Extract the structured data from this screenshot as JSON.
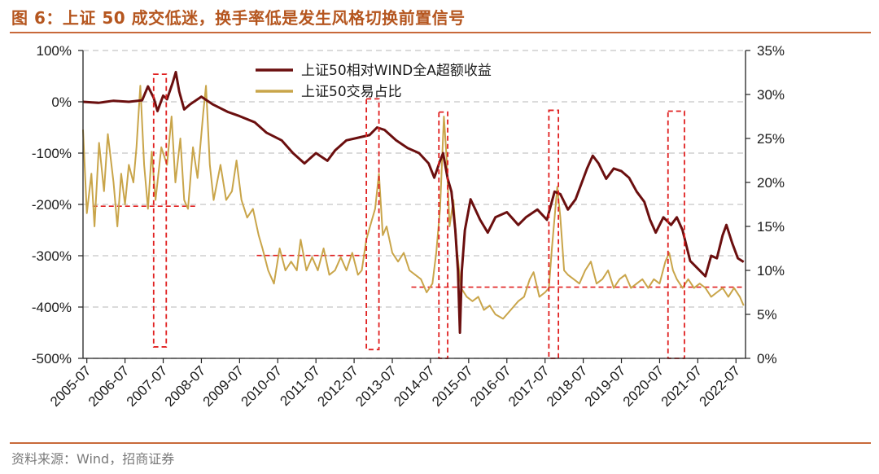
{
  "figure": {
    "title": "图 6：上证 50 成交低迷，换手率低是发生风格切换前置信号",
    "source": "资料来源：Wind，招商证券"
  },
  "colors": {
    "title": "#b5561f",
    "rule": "#c8693a",
    "relative_return": "#6b0f0f",
    "turnover_share": "#c9a54a",
    "highlight": "#e02020"
  },
  "chart_data": {
    "type": "line",
    "x_categories": [
      "2005-07",
      "2006-07",
      "2007-07",
      "2008-07",
      "2009-07",
      "2010-07",
      "2011-07",
      "2012-07",
      "2013-07",
      "2014-07",
      "2015-07",
      "2016-07",
      "2017-07",
      "2018-07",
      "2019-07",
      "2020-07",
      "2021-07",
      "2022-07"
    ],
    "x_range": [
      2005.4,
      2022.75
    ],
    "y_left": {
      "ticks": [
        "100%",
        "0%",
        "-100%",
        "-200%",
        "-300%",
        "-400%",
        "-500%"
      ],
      "range": [
        -500,
        100
      ]
    },
    "y_right": {
      "ticks": [
        "35%",
        "30%",
        "25%",
        "20%",
        "15%",
        "10%",
        "5%",
        "0%"
      ],
      "range": [
        0,
        35
      ]
    },
    "gridlines": "horizontal dashed",
    "legend_position": "top-center",
    "series": [
      {
        "name": "上证50相对WIND全A超额收益",
        "axis": "left",
        "color": "#6b0f0f",
        "points": [
          [
            2005.4,
            0
          ],
          [
            2005.8,
            -2
          ],
          [
            2006.2,
            2
          ],
          [
            2006.6,
            0
          ],
          [
            2006.95,
            3
          ],
          [
            2007.1,
            30
          ],
          [
            2007.25,
            8
          ],
          [
            2007.35,
            -18
          ],
          [
            2007.5,
            12
          ],
          [
            2007.6,
            5
          ],
          [
            2007.75,
            38
          ],
          [
            2007.83,
            58
          ],
          [
            2007.92,
            20
          ],
          [
            2008.05,
            -15
          ],
          [
            2008.2,
            -5
          ],
          [
            2008.5,
            10
          ],
          [
            2008.8,
            -5
          ],
          [
            2009.2,
            -20
          ],
          [
            2009.5,
            -28
          ],
          [
            2009.9,
            -40
          ],
          [
            2010.2,
            -60
          ],
          [
            2010.6,
            -75
          ],
          [
            2010.9,
            -100
          ],
          [
            2011.2,
            -120
          ],
          [
            2011.5,
            -100
          ],
          [
            2011.8,
            -115
          ],
          [
            2012.0,
            -95
          ],
          [
            2012.3,
            -75
          ],
          [
            2012.6,
            -70
          ],
          [
            2012.9,
            -65
          ],
          [
            2013.1,
            -50
          ],
          [
            2013.3,
            -55
          ],
          [
            2013.6,
            -75
          ],
          [
            2013.9,
            -90
          ],
          [
            2014.2,
            -100
          ],
          [
            2014.45,
            -120
          ],
          [
            2014.6,
            -148
          ],
          [
            2014.75,
            -115
          ],
          [
            2014.83,
            -100
          ],
          [
            2014.95,
            -150
          ],
          [
            2015.05,
            -175
          ],
          [
            2015.15,
            -250
          ],
          [
            2015.22,
            -330
          ],
          [
            2015.27,
            -450
          ],
          [
            2015.32,
            -330
          ],
          [
            2015.4,
            -250
          ],
          [
            2015.55,
            -190
          ],
          [
            2015.8,
            -230
          ],
          [
            2016.0,
            -255
          ],
          [
            2016.2,
            -225
          ],
          [
            2016.5,
            -215
          ],
          [
            2016.8,
            -240
          ],
          [
            2017.0,
            -225
          ],
          [
            2017.3,
            -210
          ],
          [
            2017.55,
            -230
          ],
          [
            2017.75,
            -175
          ],
          [
            2017.9,
            -180
          ],
          [
            2018.1,
            -210
          ],
          [
            2018.3,
            -190
          ],
          [
            2018.6,
            -130
          ],
          [
            2018.75,
            -105
          ],
          [
            2018.9,
            -120
          ],
          [
            2019.1,
            -150
          ],
          [
            2019.3,
            -130
          ],
          [
            2019.5,
            -135
          ],
          [
            2019.7,
            -148
          ],
          [
            2019.9,
            -175
          ],
          [
            2020.1,
            -195
          ],
          [
            2020.25,
            -230
          ],
          [
            2020.4,
            -255
          ],
          [
            2020.6,
            -225
          ],
          [
            2020.8,
            -240
          ],
          [
            2020.95,
            -225
          ],
          [
            2021.1,
            -250
          ],
          [
            2021.3,
            -310
          ],
          [
            2021.5,
            -325
          ],
          [
            2021.7,
            -340
          ],
          [
            2021.85,
            -300
          ],
          [
            2022.0,
            -305
          ],
          [
            2022.15,
            -260
          ],
          [
            2022.25,
            -240
          ],
          [
            2022.4,
            -275
          ],
          [
            2022.55,
            -305
          ],
          [
            2022.7,
            -312
          ]
        ]
      },
      {
        "name": "上证50交易占比",
        "axis": "right",
        "color": "#c9a54a",
        "points": [
          [
            2005.4,
            26
          ],
          [
            2005.5,
            16.5
          ],
          [
            2005.62,
            21
          ],
          [
            2005.7,
            15
          ],
          [
            2005.82,
            24.5
          ],
          [
            2005.95,
            19
          ],
          [
            2006.05,
            25.5
          ],
          [
            2006.2,
            20
          ],
          [
            2006.3,
            15
          ],
          [
            2006.4,
            21
          ],
          [
            2006.5,
            17.5
          ],
          [
            2006.6,
            22
          ],
          [
            2006.72,
            20
          ],
          [
            2006.8,
            24
          ],
          [
            2006.9,
            31
          ],
          [
            2007.0,
            22
          ],
          [
            2007.1,
            17
          ],
          [
            2007.2,
            23.5
          ],
          [
            2007.3,
            18
          ],
          [
            2007.45,
            24
          ],
          [
            2007.6,
            22
          ],
          [
            2007.72,
            27.5
          ],
          [
            2007.82,
            20
          ],
          [
            2007.95,
            25
          ],
          [
            2008.05,
            18
          ],
          [
            2008.15,
            17
          ],
          [
            2008.28,
            24
          ],
          [
            2008.4,
            20.5
          ],
          [
            2008.55,
            28
          ],
          [
            2008.62,
            31
          ],
          [
            2008.72,
            22
          ],
          [
            2008.82,
            18
          ],
          [
            2009.0,
            22
          ],
          [
            2009.15,
            18
          ],
          [
            2009.3,
            19
          ],
          [
            2009.42,
            22.5
          ],
          [
            2009.55,
            18
          ],
          [
            2009.7,
            16
          ],
          [
            2009.85,
            17
          ],
          [
            2010.0,
            14
          ],
          [
            2010.1,
            12.5
          ],
          [
            2010.25,
            10
          ],
          [
            2010.4,
            8.5
          ],
          [
            2010.55,
            12.5
          ],
          [
            2010.7,
            10
          ],
          [
            2010.85,
            11
          ],
          [
            2011.0,
            10
          ],
          [
            2011.1,
            13.5
          ],
          [
            2011.25,
            10
          ],
          [
            2011.4,
            11.5
          ],
          [
            2011.55,
            10
          ],
          [
            2011.7,
            12.5
          ],
          [
            2011.85,
            9.5
          ],
          [
            2012.0,
            10
          ],
          [
            2012.15,
            11.5
          ],
          [
            2012.3,
            10
          ],
          [
            2012.45,
            12
          ],
          [
            2012.6,
            9.5
          ],
          [
            2012.7,
            10
          ],
          [
            2012.82,
            13.5
          ],
          [
            2012.95,
            15.5
          ],
          [
            2013.05,
            17
          ],
          [
            2013.15,
            21
          ],
          [
            2013.25,
            14
          ],
          [
            2013.35,
            15
          ],
          [
            2013.5,
            12
          ],
          [
            2013.65,
            11
          ],
          [
            2013.8,
            12
          ],
          [
            2013.95,
            10
          ],
          [
            2014.1,
            9.5
          ],
          [
            2014.25,
            9
          ],
          [
            2014.4,
            7.5
          ],
          [
            2014.55,
            8.5
          ],
          [
            2014.65,
            12
          ],
          [
            2014.75,
            17
          ],
          [
            2014.85,
            27.5
          ],
          [
            2014.92,
            23
          ],
          [
            2015.0,
            15
          ],
          [
            2015.1,
            18
          ],
          [
            2015.2,
            12
          ],
          [
            2015.3,
            8
          ],
          [
            2015.45,
            7
          ],
          [
            2015.6,
            6.5
          ],
          [
            2015.75,
            7
          ],
          [
            2015.9,
            5.5
          ],
          [
            2016.05,
            6
          ],
          [
            2016.2,
            5
          ],
          [
            2016.4,
            4.5
          ],
          [
            2016.6,
            5.5
          ],
          [
            2016.8,
            6.5
          ],
          [
            2016.95,
            7
          ],
          [
            2017.1,
            9
          ],
          [
            2017.2,
            9.8
          ],
          [
            2017.35,
            7
          ],
          [
            2017.5,
            7.5
          ],
          [
            2017.6,
            8
          ],
          [
            2017.68,
            12.5
          ],
          [
            2017.75,
            16
          ],
          [
            2017.82,
            19.5
          ],
          [
            2017.9,
            16
          ],
          [
            2018.0,
            10
          ],
          [
            2018.1,
            9.5
          ],
          [
            2018.25,
            9
          ],
          [
            2018.4,
            8.5
          ],
          [
            2018.55,
            10
          ],
          [
            2018.7,
            11
          ],
          [
            2018.85,
            8.5
          ],
          [
            2019.0,
            9
          ],
          [
            2019.15,
            10
          ],
          [
            2019.3,
            8
          ],
          [
            2019.45,
            9
          ],
          [
            2019.6,
            9.5
          ],
          [
            2019.75,
            8
          ],
          [
            2019.9,
            8.5
          ],
          [
            2020.05,
            9
          ],
          [
            2020.2,
            8
          ],
          [
            2020.35,
            9
          ],
          [
            2020.5,
            8.5
          ],
          [
            2020.65,
            11
          ],
          [
            2020.75,
            12
          ],
          [
            2020.85,
            10
          ],
          [
            2020.95,
            9
          ],
          [
            2021.1,
            8
          ],
          [
            2021.25,
            9
          ],
          [
            2021.4,
            8
          ],
          [
            2021.55,
            8.5
          ],
          [
            2021.7,
            8
          ],
          [
            2021.85,
            7
          ],
          [
            2022.0,
            7.5
          ],
          [
            2022.15,
            8
          ],
          [
            2022.3,
            7
          ],
          [
            2022.45,
            8
          ],
          [
            2022.6,
            7
          ],
          [
            2022.7,
            6
          ]
        ]
      }
    ],
    "reference_segments": [
      {
        "y_right": 17.3,
        "x": [
          2005.65,
          2008.4
        ]
      },
      {
        "y_right": 11.7,
        "x": [
          2009.95,
          2012.8
        ]
      },
      {
        "y_right": 8.1,
        "x": [
          2014.0,
          2022.7
        ]
      }
    ],
    "highlight_boxes": [
      {
        "x": [
          2007.25,
          2007.58
        ],
        "y_right": [
          1.3,
          32.3
        ]
      },
      {
        "x": [
          2012.82,
          2013.15
        ],
        "y_right": [
          1.0,
          29.5
        ]
      },
      {
        "x": [
          2014.72,
          2014.95
        ],
        "y_right": [
          0.0,
          28.0
        ]
      },
      {
        "x": [
          2017.6,
          2017.85
        ],
        "y_right": [
          0.0,
          28.2
        ]
      },
      {
        "x": [
          2020.72,
          2021.15
        ],
        "y_right": [
          0.0,
          28.1
        ]
      }
    ]
  }
}
